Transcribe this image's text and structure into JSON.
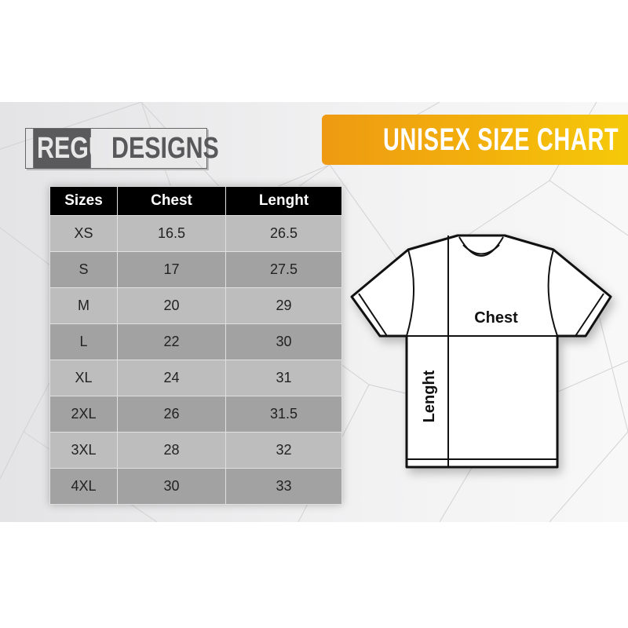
{
  "brand": {
    "part1": "REGU",
    "part2": "DESIGNS"
  },
  "banner": {
    "title": "UNISEX SIZE CHART"
  },
  "table": {
    "headers": [
      "Sizes",
      "Chest",
      "Lenght"
    ],
    "rows": [
      [
        "XS",
        "16.5",
        "26.5"
      ],
      [
        "S",
        "17",
        "27.5"
      ],
      [
        "M",
        "20",
        "29"
      ],
      [
        "L",
        "22",
        "30"
      ],
      [
        "XL",
        "24",
        "31"
      ],
      [
        "2XL",
        "26",
        "31.5"
      ],
      [
        "3XL",
        "28",
        "32"
      ],
      [
        "4XL",
        "30",
        "33"
      ]
    ]
  },
  "diagram": {
    "chest_label": "Chest",
    "length_label": "Lenght"
  },
  "colors": {
    "banner_start": "#ee9a12",
    "banner_end": "#f5c90a",
    "header_bg": "#000000"
  }
}
